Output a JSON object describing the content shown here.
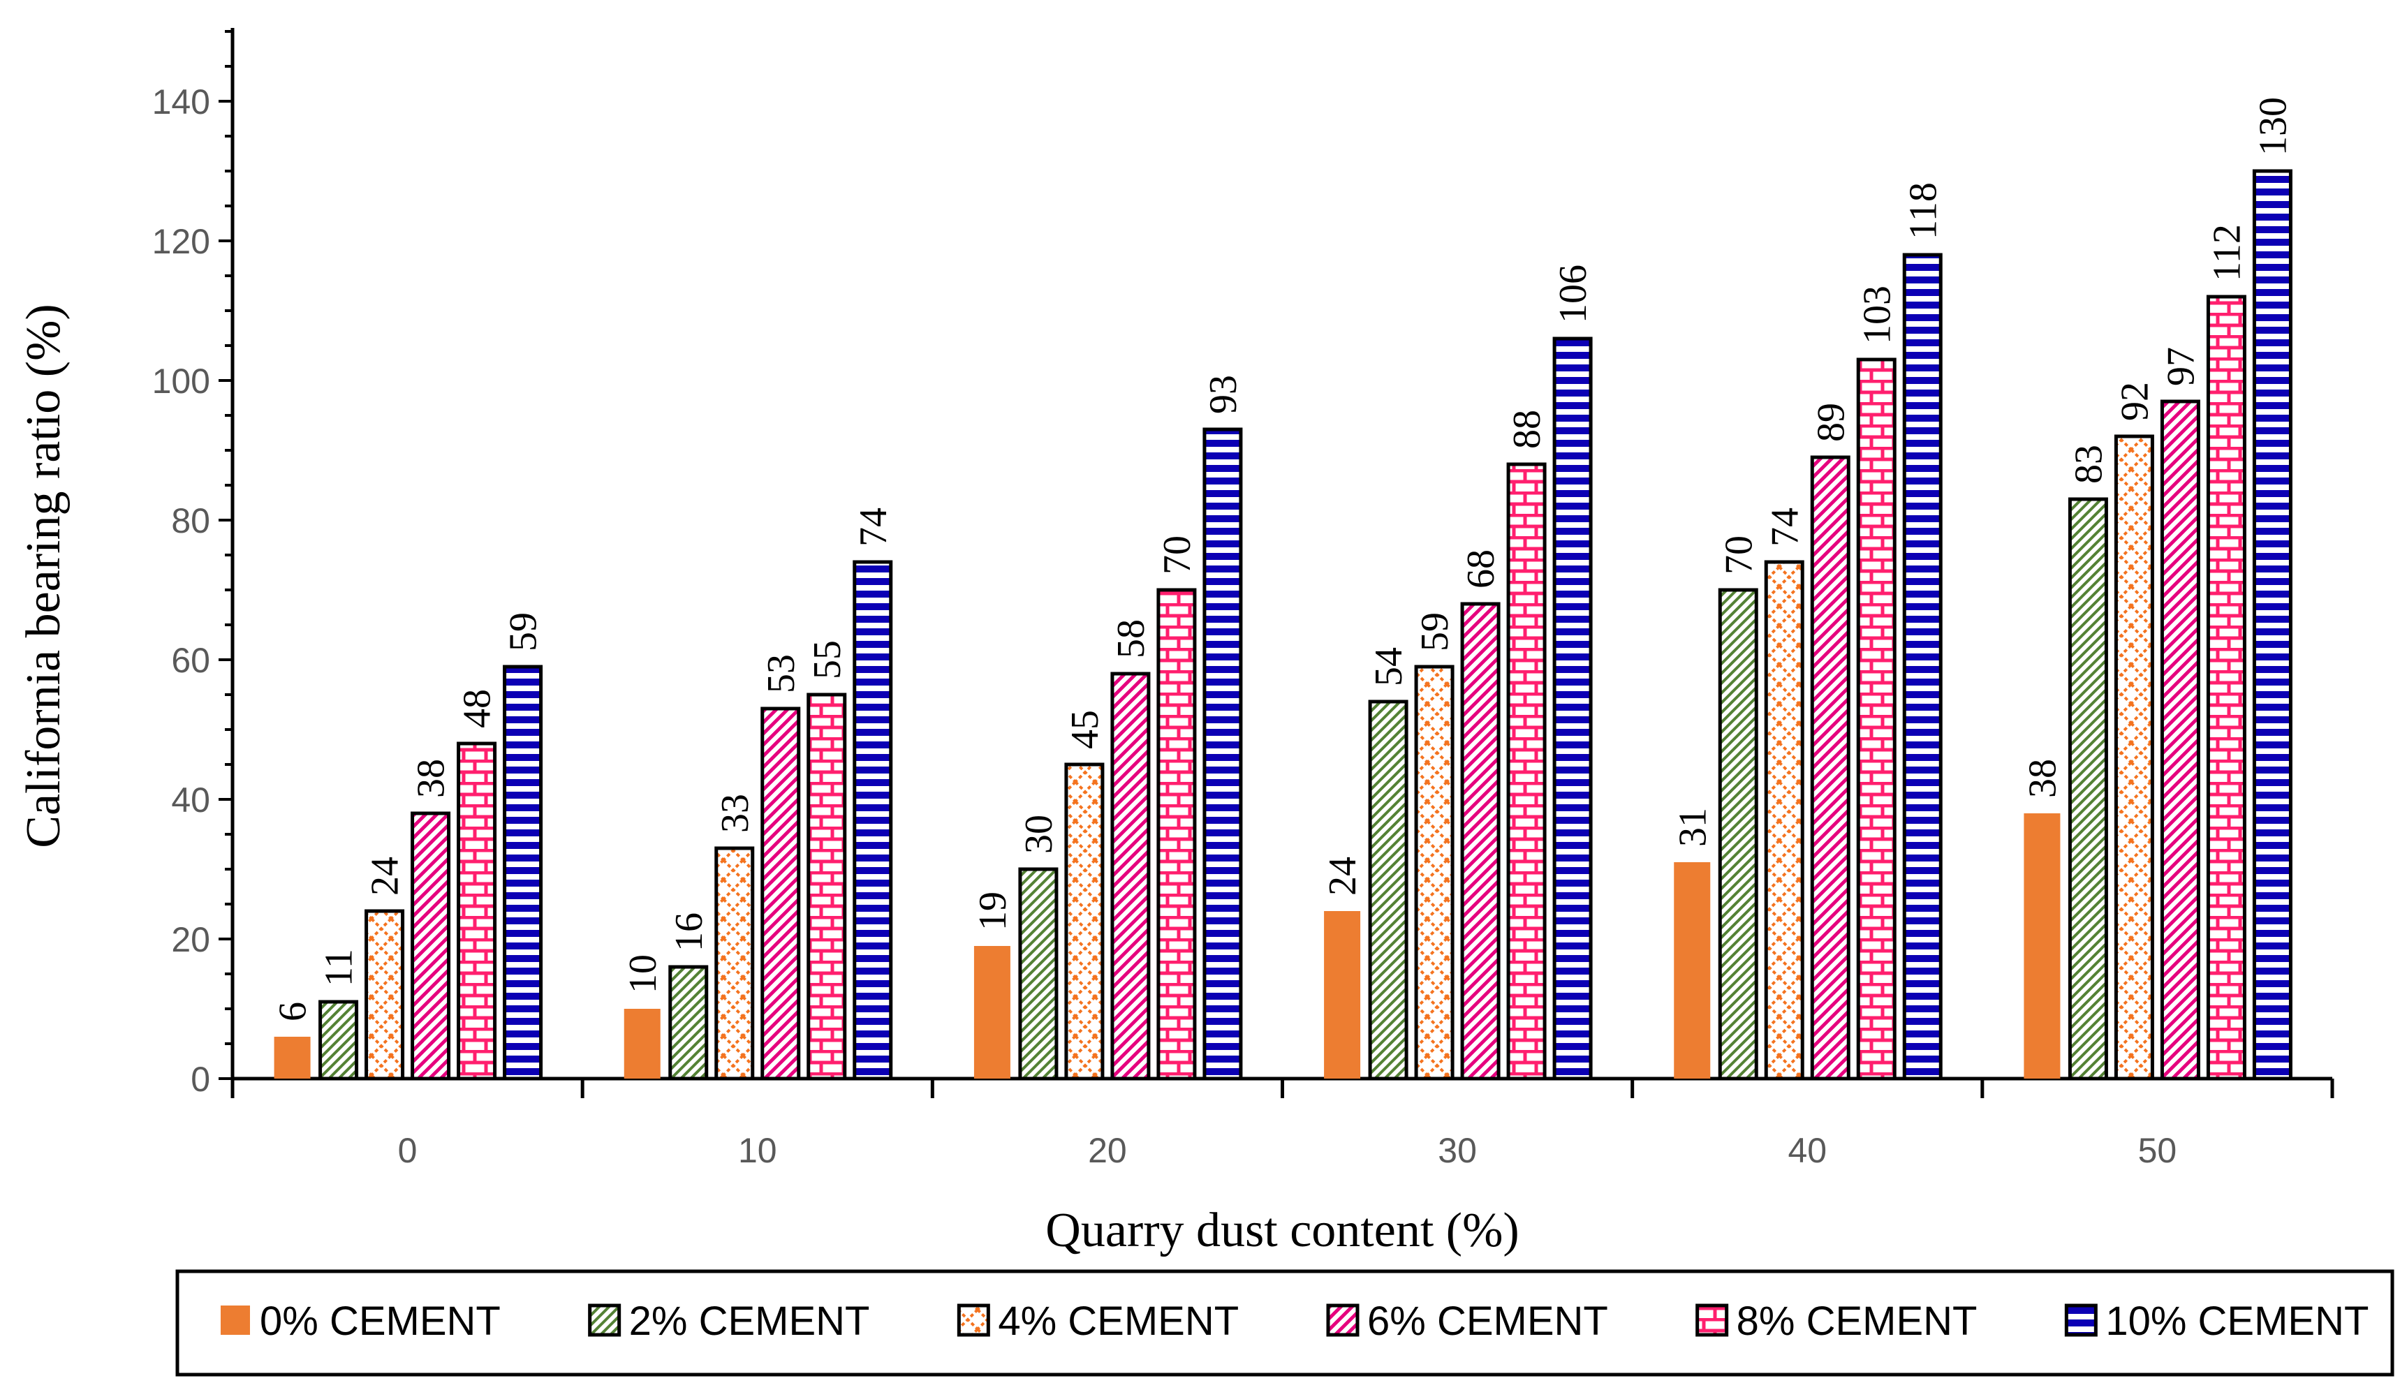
{
  "chart_data": {
    "type": "bar",
    "categories": [
      "0",
      "10",
      "20",
      "30",
      "40",
      "50"
    ],
    "xlabel": "Quarry dust content (%)",
    "ylabel": "California bearing ratio (%)",
    "ylim": [
      0,
      150
    ],
    "yticks": [
      0,
      20,
      40,
      60,
      80,
      100,
      120,
      140
    ],
    "grid": false,
    "legend_position": "bottom",
    "series": [
      {
        "name": "0% CEMENT",
        "values": [
          6,
          10,
          19,
          24,
          31,
          38
        ],
        "labels": [
          "6",
          "10",
          "19",
          "24",
          "31",
          "38"
        ],
        "color": "#ED7D31",
        "pattern": "solid"
      },
      {
        "name": "2% CEMENT",
        "values": [
          11,
          16,
          30,
          54,
          70,
          83
        ],
        "labels": [
          "11",
          "16",
          "30",
          "54",
          "70",
          "83"
        ],
        "color": "#548235",
        "pattern": "diagonal-hatch"
      },
      {
        "name": "4% CEMENT",
        "values": [
          24,
          33,
          45,
          59,
          74,
          92
        ],
        "labels": [
          "24",
          "33",
          "45",
          "59",
          "74",
          "92"
        ],
        "color": "#F4731F",
        "pattern": "cross-dots"
      },
      {
        "name": "6% CEMENT",
        "values": [
          38,
          53,
          58,
          68,
          89,
          97
        ],
        "labels": [
          "38",
          "53",
          "58",
          "68",
          "89",
          "97"
        ],
        "color": "#E6007E",
        "pattern": "diagonal-stripe"
      },
      {
        "name": "8% CEMENT",
        "values": [
          48,
          55,
          70,
          88,
          103,
          112
        ],
        "labels": [
          "48",
          "55",
          "70",
          "88",
          "103",
          "112"
        ],
        "color": "#FF1F6E",
        "pattern": "brick"
      },
      {
        "name": "10% CEMENT",
        "values": [
          59,
          74,
          93,
          106,
          118,
          130
        ],
        "labels": [
          "59",
          "74",
          "93",
          "106",
          "118",
          "130"
        ],
        "color": "#0C00B4",
        "pattern": "horizontal-stripe"
      }
    ]
  }
}
